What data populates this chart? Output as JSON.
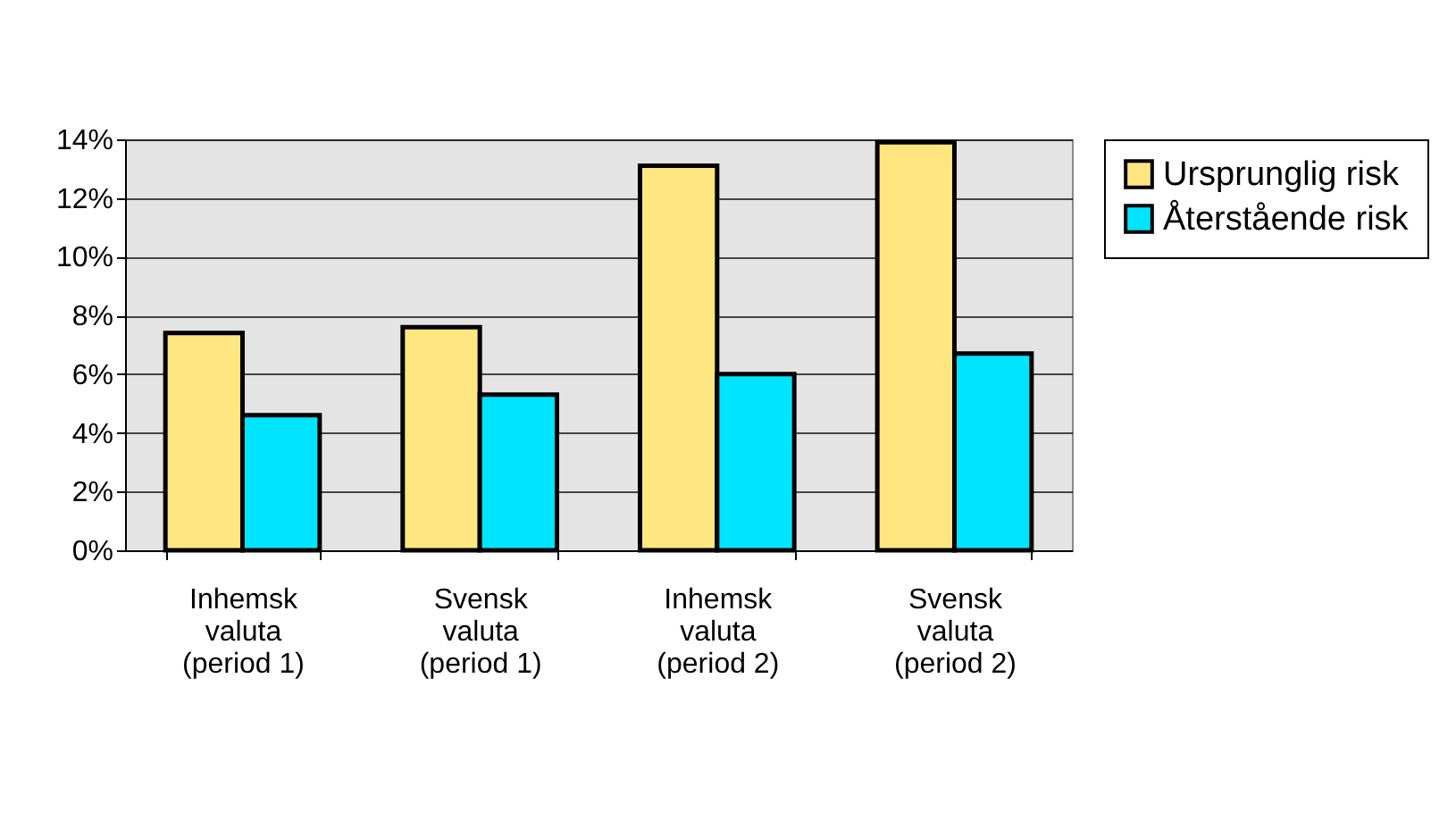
{
  "chart_data": {
    "type": "bar",
    "categories": [
      "Inhemsk\nvaluta\n(period 1)",
      "Svensk\nvaluta\n(period 1)",
      "Inhemsk\nvaluta\n(period 2)",
      "Svensk\nvaluta\n(period 2)"
    ],
    "series": [
      {
        "name": "Ursprunglig risk",
        "color": "#ffe680",
        "values": [
          0.074,
          0.076,
          0.131,
          0.139
        ]
      },
      {
        "name": "Återstående risk",
        "color": "#00e5ff",
        "values": [
          0.046,
          0.053,
          0.06,
          0.067
        ]
      }
    ],
    "ylim": [
      0,
      0.14
    ],
    "yticks": [
      {
        "value": 0,
        "label": "0%"
      },
      {
        "value": 0.02,
        "label": "2%"
      },
      {
        "value": 0.04,
        "label": "4%"
      },
      {
        "value": 0.06,
        "label": "6%"
      },
      {
        "value": 0.08,
        "label": "8%"
      },
      {
        "value": 0.1,
        "label": "10%"
      },
      {
        "value": 0.12,
        "label": "12%"
      },
      {
        "value": 0.14,
        "label": "14%"
      }
    ],
    "grid": "y",
    "legend": "right"
  }
}
